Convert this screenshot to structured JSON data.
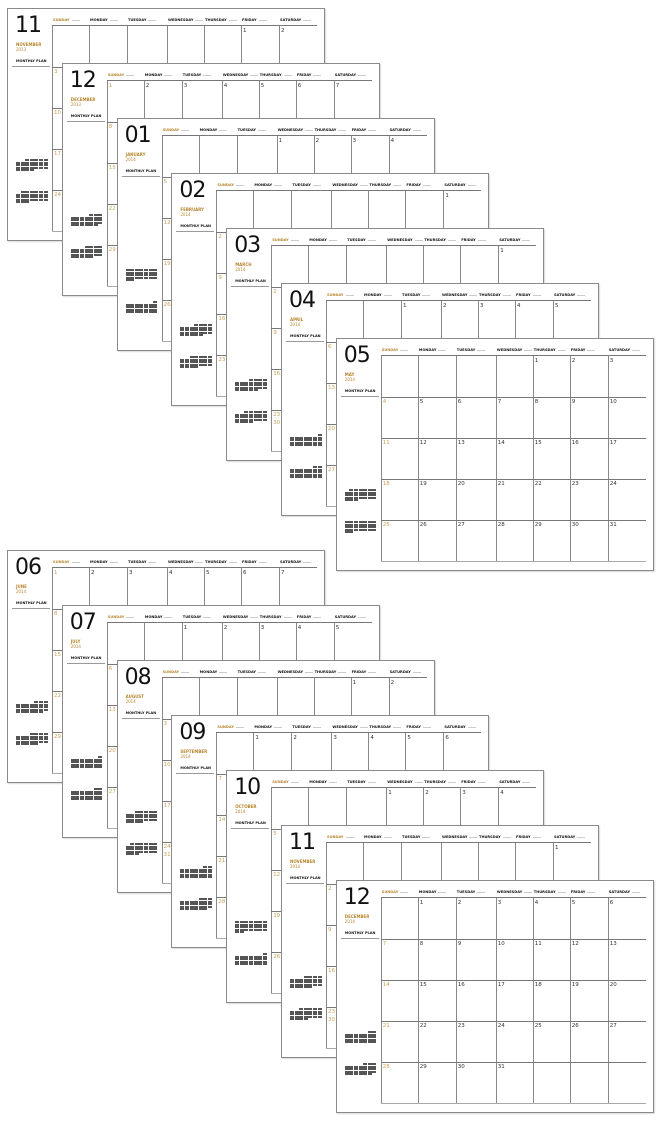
{
  "plan_label": "MONTHLY PLAN",
  "weekdays": [
    "SUNDAY",
    "MONDAY",
    "TUESDAY",
    "WEDNESDAY",
    "THURSDAY",
    "FRIDAY",
    "SATURDAY"
  ],
  "colors": {
    "accent": "#b7862e",
    "sunday_day": "#c9a25a",
    "grid": "#888888"
  },
  "stacks": [
    {
      "pages": [
        {
          "number": "11",
          "name": "NOVEMBER",
          "year": "2013",
          "start_weekday": 5,
          "days": 30
        },
        {
          "number": "12",
          "name": "DECEMBER",
          "year": "2013",
          "start_weekday": 0,
          "days": 31
        },
        {
          "number": "01",
          "name": "JANUARY",
          "year": "2014",
          "start_weekday": 3,
          "days": 31
        },
        {
          "number": "02",
          "name": "FEBRUARY",
          "year": "2014",
          "start_weekday": 6,
          "days": 28
        },
        {
          "number": "03",
          "name": "MARCH",
          "year": "2014",
          "start_weekday": 6,
          "days": 31
        },
        {
          "number": "04",
          "name": "APRIL",
          "year": "2014",
          "start_weekday": 2,
          "days": 30
        },
        {
          "number": "05",
          "name": "MAY",
          "year": "2014",
          "start_weekday": 4,
          "days": 31
        }
      ]
    },
    {
      "pages": [
        {
          "number": "06",
          "name": "JUNE",
          "year": "2014",
          "start_weekday": 0,
          "days": 30
        },
        {
          "number": "07",
          "name": "JULY",
          "year": "2014",
          "start_weekday": 2,
          "days": 31
        },
        {
          "number": "08",
          "name": "AUGUST",
          "year": "2014",
          "start_weekday": 5,
          "days": 31
        },
        {
          "number": "09",
          "name": "SEPTEMBER",
          "year": "2014",
          "start_weekday": 1,
          "days": 30
        },
        {
          "number": "10",
          "name": "OCTOBER",
          "year": "2014",
          "start_weekday": 3,
          "days": 31
        },
        {
          "number": "11",
          "name": "NOVEMBER",
          "year": "2014",
          "start_weekday": 6,
          "days": 30
        },
        {
          "number": "12",
          "name": "DECEMBER",
          "year": "2014",
          "start_weekday": 1,
          "days": 31
        }
      ]
    }
  ]
}
